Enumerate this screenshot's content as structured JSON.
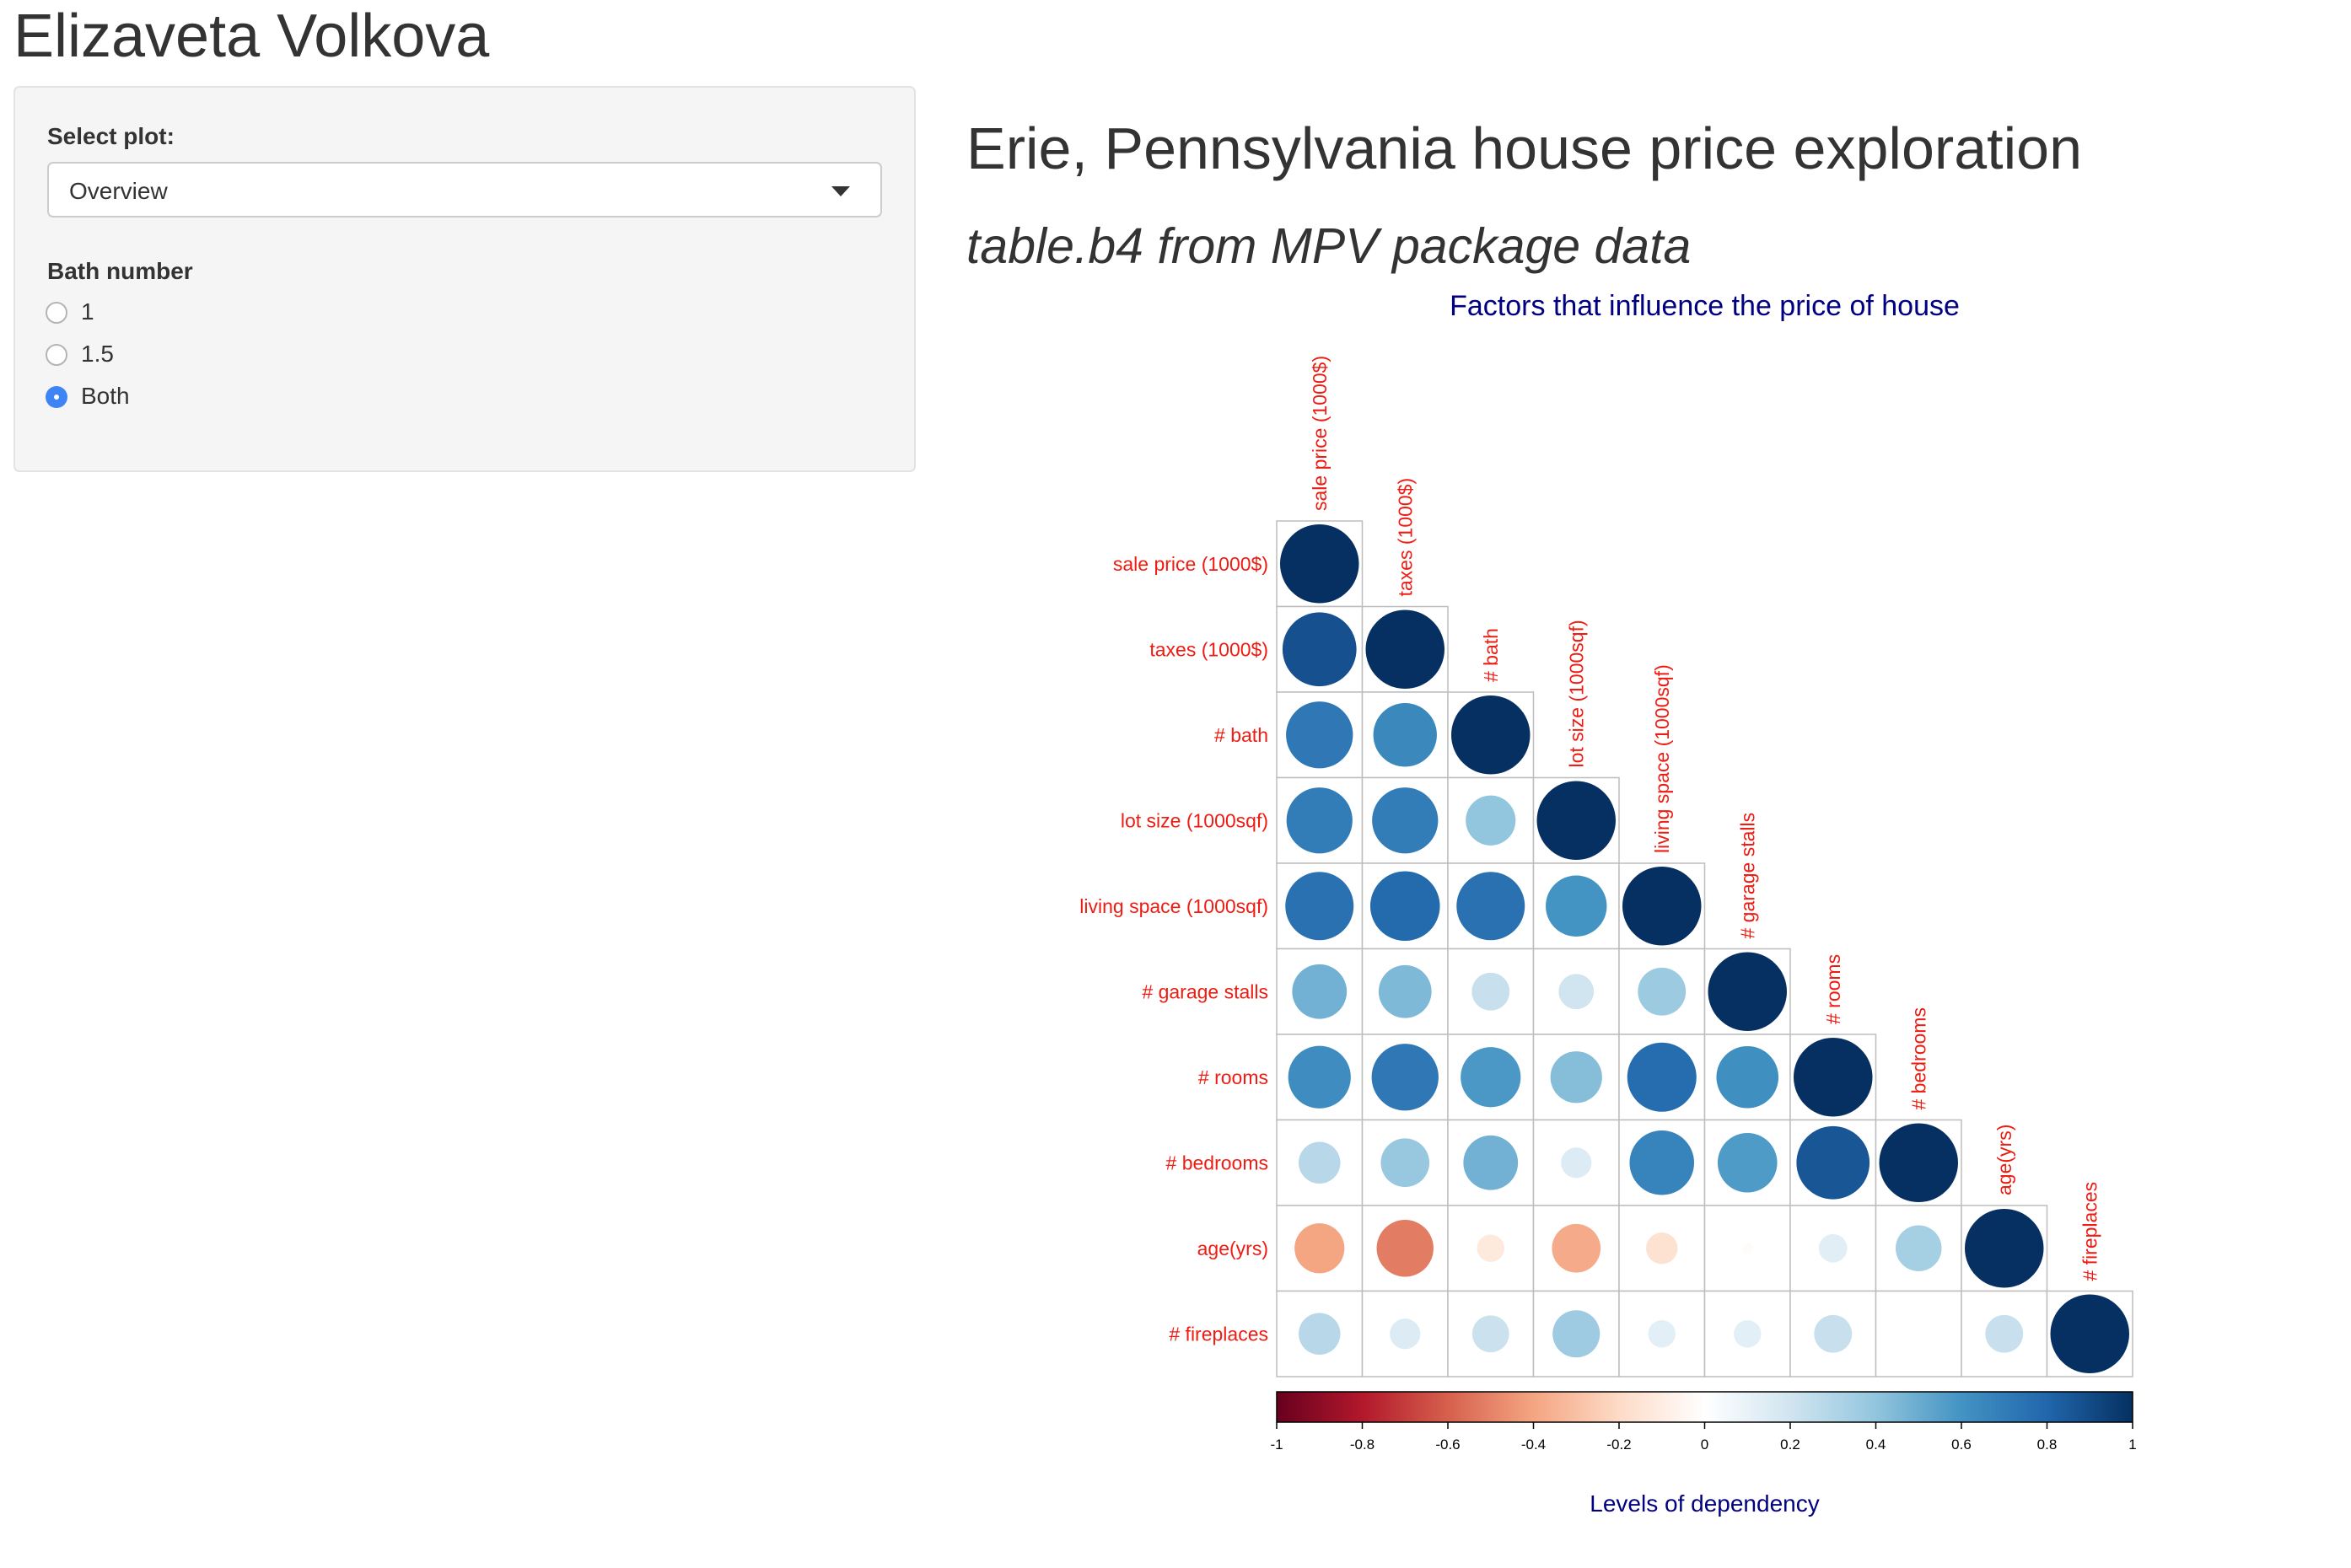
{
  "app": {
    "author_title": "Elizaveta Volkova"
  },
  "sidebar": {
    "select_label": "Select plot:",
    "select_value": "Overview",
    "radio_group_label": "Bath number",
    "radio_options": [
      {
        "label": "1",
        "checked": false
      },
      {
        "label": "1.5",
        "checked": false
      },
      {
        "label": "Both",
        "checked": true
      }
    ]
  },
  "main": {
    "title": "Erie, Pennsylvania house price exploration",
    "subtitle": "table.b4 from MPV package data"
  },
  "colors": {
    "label_red": "#ee1c12",
    "title_navy": "#000080",
    "radio_accent": "#3f84f5"
  },
  "chart_data": {
    "type": "heatmap",
    "subtype": "correlation-circles-lower-triangle",
    "title": "Factors that influence the price of house",
    "legend_title": "Levels of dependency",
    "variables": [
      "sale price (1000$)",
      "taxes (1000$)",
      "# bath",
      "lot size (1000sqf)",
      "living space (1000sqf)",
      "# garage stalls",
      "# rooms",
      "# bedrooms",
      "age(yrs)",
      "# fireplaces"
    ],
    "matrix_lower": [
      [
        1.0
      ],
      [
        0.88,
        1.0
      ],
      [
        0.72,
        0.65,
        1.0
      ],
      [
        0.7,
        0.7,
        0.4,
        1.0
      ],
      [
        0.75,
        0.78,
        0.75,
        0.6,
        1.0
      ],
      [
        0.48,
        0.45,
        0.23,
        0.2,
        0.37,
        1.0
      ],
      [
        0.63,
        0.72,
        0.58,
        0.43,
        0.77,
        0.62,
        1.0
      ],
      [
        0.28,
        0.38,
        0.48,
        0.15,
        0.67,
        0.57,
        0.86,
        1.0
      ],
      [
        -0.4,
        -0.52,
        -0.12,
        -0.38,
        -0.16,
        -0.02,
        0.13,
        0.34,
        1.0
      ],
      [
        0.28,
        0.15,
        0.22,
        0.36,
        0.12,
        0.12,
        0.23,
        0.0,
        0.23,
        1.0
      ]
    ],
    "colorbar": {
      "range": [
        -1,
        1
      ],
      "ticks": [
        "-1",
        "-0.8",
        "-0.6",
        "-0.4",
        "-0.2",
        "0",
        "0.2",
        "0.4",
        "0.6",
        "0.8",
        "1"
      ]
    }
  }
}
